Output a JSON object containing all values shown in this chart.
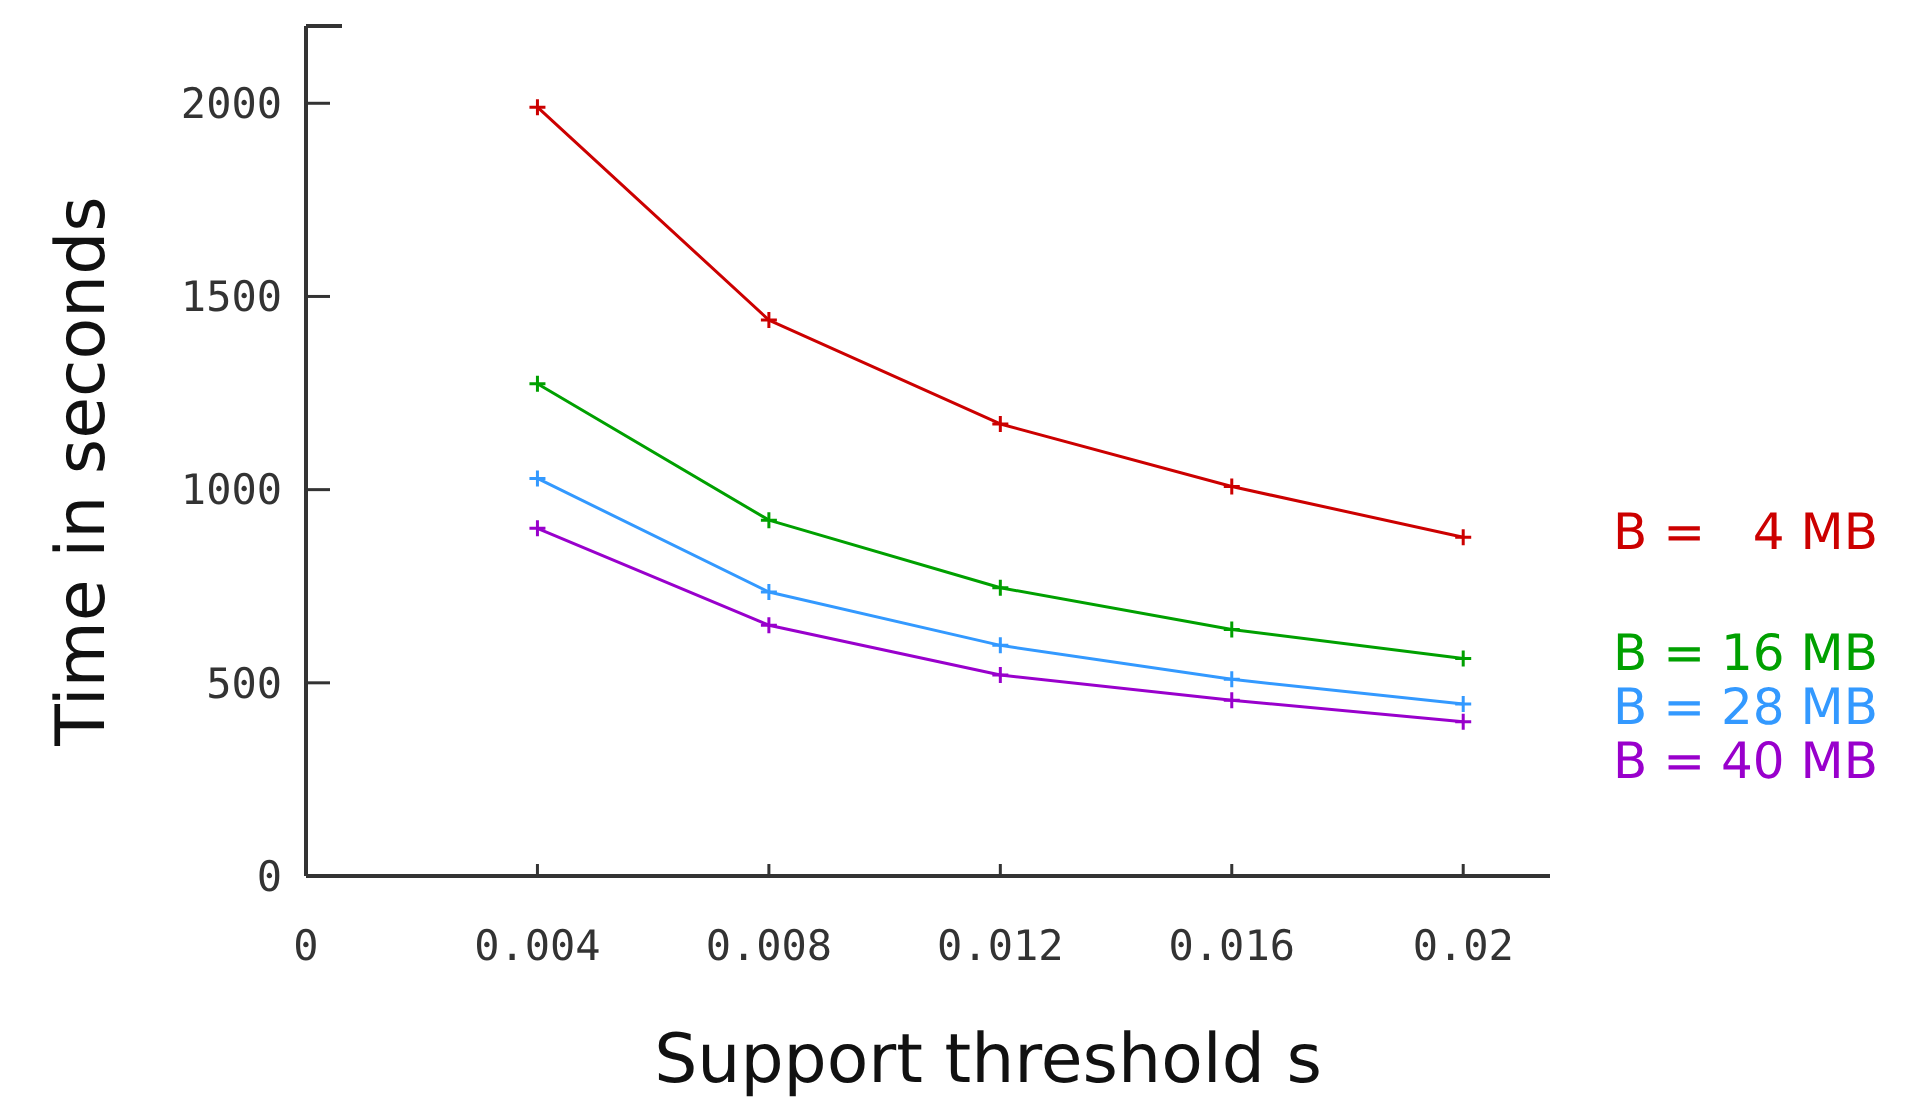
{
  "chart_data": {
    "type": "line",
    "xlabel": "Support threshold s",
    "ylabel": "Time in seconds",
    "x": [
      0.004,
      0.008,
      0.012,
      0.016,
      0.02
    ],
    "xlim": [
      0,
      0.0215
    ],
    "xticks": [
      0,
      0.004,
      0.008,
      0.012,
      0.016,
      0.02
    ],
    "ylim": [
      0,
      2200
    ],
    "yticks": [
      0,
      500,
      1000,
      1500,
      2000
    ],
    "marker": "cross",
    "legend": "right",
    "grid": false,
    "series": [
      {
        "name": "B =   4 MB",
        "color": "#cc0000",
        "values": [
          1990,
          1439,
          1170,
          1008,
          877
        ]
      },
      {
        "name": "B = 16 MB",
        "color": "#00a000",
        "values": [
          1274,
          921,
          746,
          638,
          563
        ]
      },
      {
        "name": "B = 28 MB",
        "color": "#3399ff",
        "values": [
          1029,
          735,
          597,
          509,
          445
        ]
      },
      {
        "name": "B = 40 MB",
        "color": "#9900cc",
        "values": [
          900,
          649,
          520,
          455,
          399
        ]
      }
    ]
  }
}
